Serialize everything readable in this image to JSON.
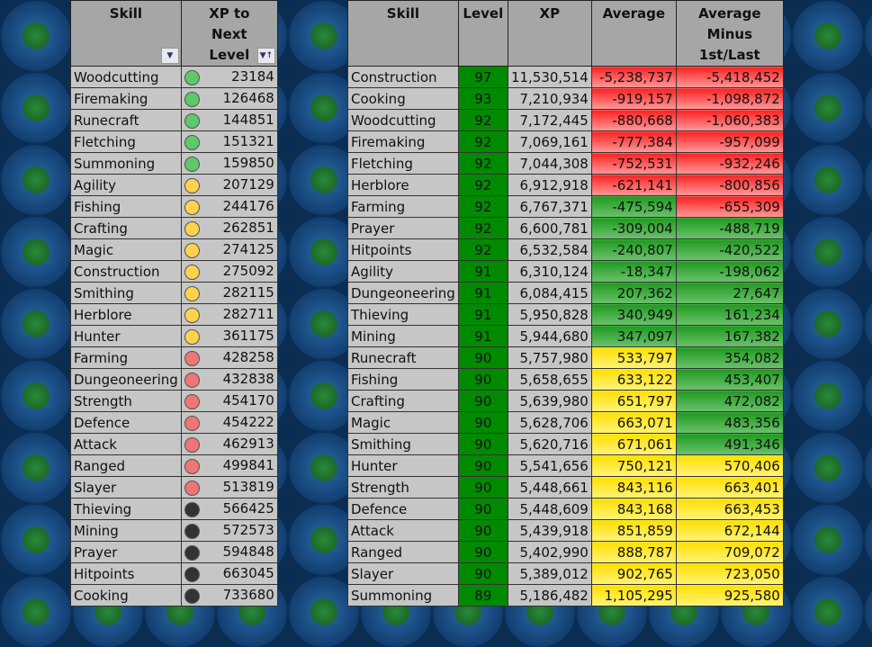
{
  "left_table": {
    "headers": [
      "Skill",
      "XP to Next Level"
    ],
    "rows": [
      [
        "Woodcutting",
        "green",
        "23184"
      ],
      [
        "Firemaking",
        "green",
        "126468"
      ],
      [
        "Runecraft",
        "green",
        "144851"
      ],
      [
        "Fletching",
        "green",
        "151321"
      ],
      [
        "Summoning",
        "green",
        "159850"
      ],
      [
        "Agility",
        "yellow",
        "207129"
      ],
      [
        "Fishing",
        "yellow",
        "244176"
      ],
      [
        "Crafting",
        "yellow",
        "262851"
      ],
      [
        "Magic",
        "yellow",
        "274125"
      ],
      [
        "Construction",
        "yellow",
        "275092"
      ],
      [
        "Smithing",
        "yellow",
        "282115"
      ],
      [
        "Herblore",
        "yellow",
        "282711"
      ],
      [
        "Hunter",
        "yellow",
        "361175"
      ],
      [
        "Farming",
        "red",
        "428258"
      ],
      [
        "Dungeoneering",
        "red",
        "432838"
      ],
      [
        "Strength",
        "red",
        "454170"
      ],
      [
        "Defence",
        "red",
        "454222"
      ],
      [
        "Attack",
        "red",
        "462913"
      ],
      [
        "Ranged",
        "red",
        "499841"
      ],
      [
        "Slayer",
        "red",
        "513819"
      ],
      [
        "Thieving",
        "black",
        "566425"
      ],
      [
        "Mining",
        "black",
        "572573"
      ],
      [
        "Prayer",
        "black",
        "594848"
      ],
      [
        "Hitpoints",
        "black",
        "663045"
      ],
      [
        "Cooking",
        "black",
        "733680"
      ]
    ]
  },
  "status_colors": {
    "green": "#5cc96b",
    "yellow": "#ffd24d",
    "red": "#f07575",
    "black": "#333333"
  },
  "right_table": {
    "headers": [
      "Skill",
      "Level",
      "XP",
      "Average",
      "Average Minus 1st/Last"
    ],
    "rows": [
      [
        "Construction",
        "97",
        "11,530,514",
        "-5,238,737",
        "red",
        "-5,418,452",
        "red"
      ],
      [
        "Cooking",
        "93",
        "7,210,934",
        "-919,157",
        "red",
        "-1,098,872",
        "red"
      ],
      [
        "Woodcutting",
        "92",
        "7,172,445",
        "-880,668",
        "red",
        "-1,060,383",
        "red"
      ],
      [
        "Firemaking",
        "92",
        "7,069,161",
        "-777,384",
        "red",
        "-957,099",
        "red"
      ],
      [
        "Fletching",
        "92",
        "7,044,308",
        "-752,531",
        "red",
        "-932,246",
        "red"
      ],
      [
        "Herblore",
        "92",
        "6,912,918",
        "-621,141",
        "red",
        "-800,856",
        "red"
      ],
      [
        "Farming",
        "92",
        "6,767,371",
        "-475,594",
        "green",
        "-655,309",
        "red"
      ],
      [
        "Prayer",
        "92",
        "6,600,781",
        "-309,004",
        "green",
        "-488,719",
        "green"
      ],
      [
        "Hitpoints",
        "92",
        "6,532,584",
        "-240,807",
        "green",
        "-420,522",
        "green"
      ],
      [
        "Agility",
        "91",
        "6,310,124",
        "-18,347",
        "green",
        "-198,062",
        "green"
      ],
      [
        "Dungeoneering",
        "91",
        "6,084,415",
        "207,362",
        "green",
        "27,647",
        "green"
      ],
      [
        "Thieving",
        "91",
        "5,950,828",
        "340,949",
        "green",
        "161,234",
        "green"
      ],
      [
        "Mining",
        "91",
        "5,944,680",
        "347,097",
        "green",
        "167,382",
        "green"
      ],
      [
        "Runecraft",
        "90",
        "5,757,980",
        "533,797",
        "yellow",
        "354,082",
        "green"
      ],
      [
        "Fishing",
        "90",
        "5,658,655",
        "633,122",
        "yellow",
        "453,407",
        "green"
      ],
      [
        "Crafting",
        "90",
        "5,639,980",
        "651,797",
        "yellow",
        "472,082",
        "green"
      ],
      [
        "Magic",
        "90",
        "5,628,706",
        "663,071",
        "yellow",
        "483,356",
        "green"
      ],
      [
        "Smithing",
        "90",
        "5,620,716",
        "671,061",
        "yellow",
        "491,346",
        "green"
      ],
      [
        "Hunter",
        "90",
        "5,541,656",
        "750,121",
        "yellow",
        "570,406",
        "yellow"
      ],
      [
        "Strength",
        "90",
        "5,448,661",
        "843,116",
        "yellow",
        "663,401",
        "yellow"
      ],
      [
        "Defence",
        "90",
        "5,448,609",
        "843,168",
        "yellow",
        "663,453",
        "yellow"
      ],
      [
        "Attack",
        "90",
        "5,439,918",
        "851,859",
        "yellow",
        "672,144",
        "yellow"
      ],
      [
        "Ranged",
        "90",
        "5,402,990",
        "888,787",
        "yellow",
        "709,072",
        "yellow"
      ],
      [
        "Slayer",
        "90",
        "5,389,012",
        "902,765",
        "yellow",
        "723,050",
        "yellow"
      ],
      [
        "Summoning",
        "89",
        "5,186,482",
        "1,105,295",
        "yellow",
        "925,580",
        "yellow"
      ]
    ]
  }
}
